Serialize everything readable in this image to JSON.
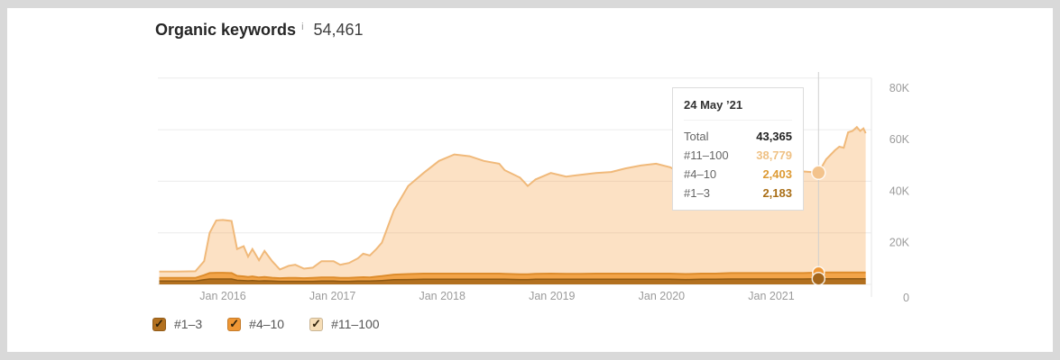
{
  "header": {
    "title": "Organic keywords",
    "info_icon": "i",
    "value": "54,461"
  },
  "tooltip": {
    "date": "24 May ’21",
    "rows": [
      {
        "label": "Total",
        "value": "43,365",
        "color": "#222222"
      },
      {
        "label": "#11–100",
        "value": "38,779",
        "color": "#efc184"
      },
      {
        "label": "#4–10",
        "value": "2,403",
        "color": "#dd9a33"
      },
      {
        "label": "#1–3",
        "value": "2,183",
        "color": "#a96e16"
      }
    ]
  },
  "legend": {
    "check_glyph": "✓",
    "items": [
      {
        "label": "#1–3",
        "checkbox_color": "#b2701f",
        "checked": true
      },
      {
        "label": "#4–10",
        "checkbox_color": "#ef9735",
        "checked": true
      },
      {
        "label": "#11–100",
        "checkbox_color": "#f6ddb6",
        "checked": true
      }
    ]
  },
  "chart_data": {
    "type": "area",
    "stacked": true,
    "title": "Organic keywords",
    "xlabel": "",
    "ylabel": "",
    "ylim": [
      0,
      82000
    ],
    "grid": true,
    "legend_position": "bottom",
    "x_tick_labels": [
      "Jan 2016",
      "Jan 2017",
      "Jan 2018",
      "Jan 2019",
      "Jan 2020",
      "Jan 2021"
    ],
    "x_tick_years": [
      2016,
      2017,
      2018,
      2019,
      2020,
      2021
    ],
    "y_ticks": [
      {
        "label": "80K",
        "value": 80000
      },
      {
        "label": "60K",
        "value": 60000
      },
      {
        "label": "40K",
        "value": 40000
      },
      {
        "label": "20K",
        "value": 20000
      },
      {
        "label": "0",
        "value": 0
      }
    ],
    "x_years": [
      2015.42,
      2015.58,
      2015.75,
      2015.83,
      2015.88,
      2015.94,
      2016.0,
      2016.08,
      2016.13,
      2016.19,
      2016.23,
      2016.27,
      2016.33,
      2016.38,
      2016.45,
      2016.52,
      2016.6,
      2016.66,
      2016.74,
      2016.82,
      2016.9,
      2017.01,
      2017.07,
      2017.15,
      2017.23,
      2017.28,
      2017.34,
      2017.4,
      2017.45,
      2017.56,
      2017.69,
      2017.83,
      2017.97,
      2018.11,
      2018.25,
      2018.38,
      2018.52,
      2018.57,
      2018.71,
      2018.78,
      2018.85,
      2018.99,
      2019.13,
      2019.26,
      2019.4,
      2019.54,
      2019.67,
      2019.81,
      2019.95,
      2020.08,
      2020.22,
      2020.36,
      2020.49,
      2020.63,
      2020.77,
      2020.9,
      2021.04,
      2021.18,
      2021.29,
      2021.43,
      2021.5,
      2021.58,
      2021.62,
      2021.66,
      2021.7,
      2021.74,
      2021.78,
      2021.81,
      2021.84,
      2021.86
    ],
    "series": [
      {
        "name": "#1–3",
        "fill": "#b2701f",
        "line_color": "#8f5913",
        "values": [
          1300,
          1300,
          1300,
          1800,
          2100,
          2100,
          2100,
          2100,
          1600,
          1500,
          1400,
          1500,
          1300,
          1400,
          1300,
          1200,
          1200,
          1200,
          1200,
          1200,
          1300,
          1300,
          1200,
          1200,
          1300,
          1300,
          1300,
          1400,
          1500,
          1800,
          1900,
          2000,
          2000,
          2000,
          2000,
          2000,
          2000,
          2000,
          1900,
          1900,
          2000,
          2000,
          2000,
          2000,
          2000,
          2000,
          2000,
          2000,
          2000,
          2000,
          1900,
          2000,
          2000,
          2100,
          2100,
          2100,
          2100,
          2100,
          2100,
          2183,
          2200,
          2200,
          2200,
          2200,
          2200,
          2200,
          2200,
          2200,
          2200,
          2200
        ]
      },
      {
        "name": "#4–10",
        "fill": "#f2a449",
        "line_color": "#dd8c2c",
        "values": [
          1200,
          1200,
          1200,
          1800,
          2300,
          2400,
          2400,
          2300,
          1700,
          1600,
          1500,
          1600,
          1400,
          1500,
          1300,
          1200,
          1300,
          1300,
          1200,
          1300,
          1400,
          1400,
          1300,
          1300,
          1400,
          1500,
          1400,
          1600,
          1700,
          2000,
          2100,
          2200,
          2200,
          2200,
          2200,
          2200,
          2200,
          2100,
          2000,
          2000,
          2100,
          2200,
          2100,
          2100,
          2200,
          2200,
          2200,
          2200,
          2200,
          2200,
          2100,
          2200,
          2200,
          2300,
          2300,
          2300,
          2300,
          2300,
          2300,
          2403,
          2400,
          2400,
          2400,
          2400,
          2400,
          2400,
          2400,
          2400,
          2400,
          2400
        ]
      },
      {
        "name": "#11–100",
        "fill": "rgba(244,154,61,0.30)",
        "line_color": "#f0b97a",
        "values": [
          2500,
          2500,
          2600,
          5400,
          15600,
          20300,
          20500,
          20200,
          10400,
          11700,
          7900,
          10600,
          6700,
          10100,
          6400,
          3400,
          4700,
          5100,
          3700,
          4000,
          6300,
          6300,
          5100,
          5800,
          7400,
          9100,
          8500,
          10700,
          13000,
          25000,
          34200,
          39000,
          43700,
          46200,
          45500,
          43700,
          42600,
          40200,
          37500,
          34300,
          36600,
          39000,
          37700,
          38400,
          39000,
          39400,
          40800,
          41900,
          42600,
          41200,
          37800,
          39000,
          41900,
          42800,
          42400,
          41700,
          40600,
          39600,
          39400,
          38779,
          43900,
          47400,
          48800,
          48400,
          54400,
          54900,
          56400,
          54900,
          55900,
          54000
        ]
      }
    ],
    "crosshair": {
      "year": 2021.43,
      "date": "24 May ’21",
      "total": 43365,
      "p11_100": 38779,
      "p4_10": 2403,
      "p1_3": 2183
    }
  }
}
